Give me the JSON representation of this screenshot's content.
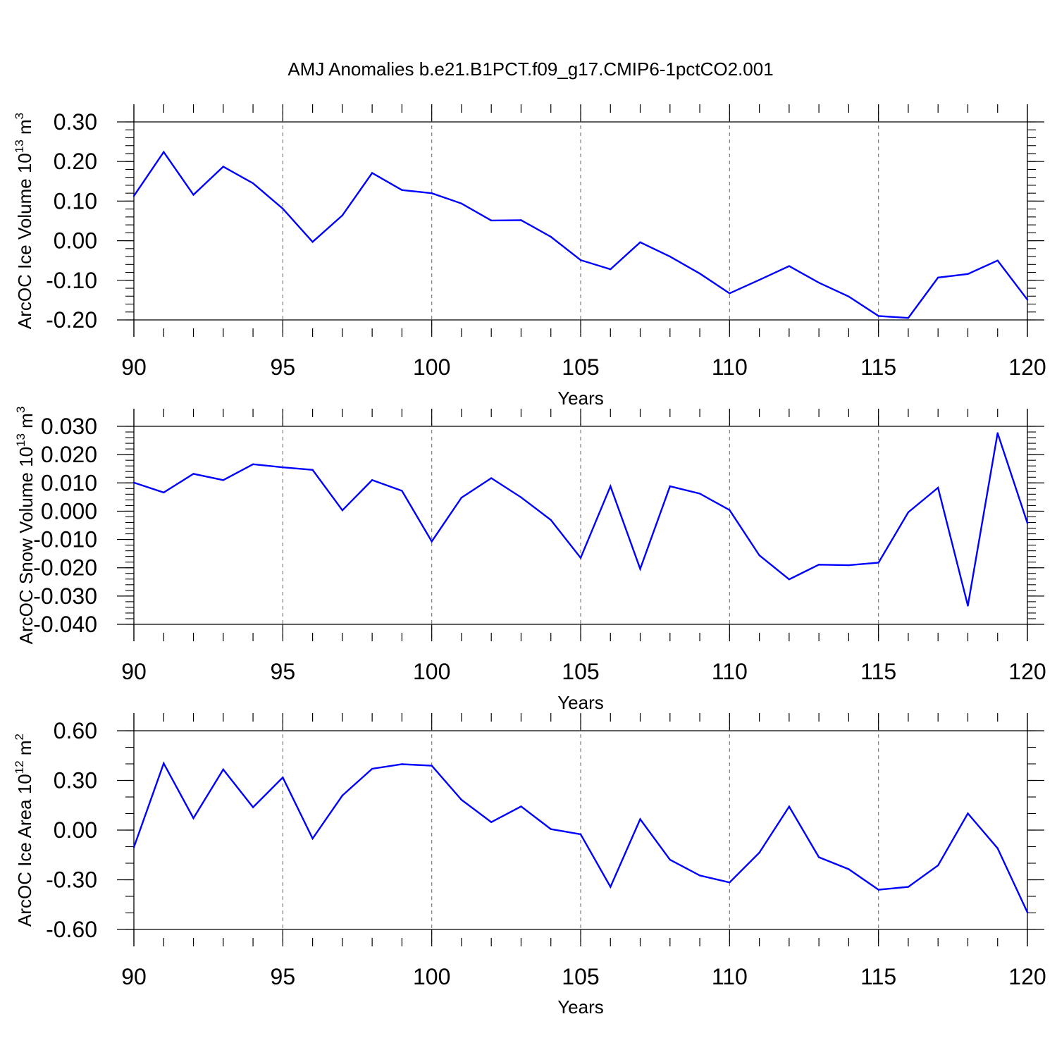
{
  "title": "AMJ Anomalies b.e21.B1PCT.f09_g17.CMIP6-1pctCO2.001",
  "colors": {
    "line": "#0000ff",
    "axes": "#000000",
    "grid": "#808080"
  },
  "chart_data": [
    {
      "type": "line",
      "xlabel": "Years",
      "ylabel": {
        "prefix": "ArcOC Ice Volume 10",
        "exp": "13",
        "unit": " m",
        "unit_exp": "3"
      },
      "xlim": [
        90,
        120
      ],
      "ylim": [
        -0.2,
        0.3
      ],
      "x_ticks": [
        90,
        95,
        100,
        105,
        110,
        115,
        120
      ],
      "x_tick_labels": [
        "90",
        "95",
        "100",
        "105",
        "110",
        "115",
        "120"
      ],
      "y_ticks": [
        0.3,
        0.2,
        0.1,
        0.0,
        -0.1,
        -0.2
      ],
      "y_tick_labels": [
        "0.30",
        "0.20",
        "0.10",
        "0.00",
        "-0.10",
        "-0.20"
      ],
      "y_minor_step": 0.02,
      "grid": "vertical dashed at major x ticks",
      "x": [
        90,
        91,
        92,
        93,
        94,
        95,
        96,
        97,
        98,
        99,
        100,
        101,
        102,
        103,
        104,
        105,
        106,
        107,
        108,
        109,
        110,
        111,
        112,
        113,
        114,
        115,
        116,
        117,
        118,
        119,
        120
      ],
      "values": [
        0.113,
        0.224,
        0.116,
        0.187,
        0.145,
        0.081,
        -0.003,
        0.064,
        0.171,
        0.128,
        0.12,
        0.094,
        0.051,
        0.052,
        0.01,
        -0.049,
        -0.072,
        -0.004,
        -0.04,
        -0.083,
        -0.133,
        -0.099,
        -0.064,
        -0.106,
        -0.141,
        -0.19,
        -0.195,
        -0.093,
        -0.084,
        -0.05,
        -0.149
      ]
    },
    {
      "type": "line",
      "xlabel": "Years",
      "ylabel": {
        "prefix": "ArcOC Snow Volume 10",
        "exp": "13",
        "unit": " m",
        "unit_exp": "3"
      },
      "xlim": [
        90,
        120
      ],
      "ylim": [
        -0.04,
        0.03
      ],
      "x_ticks": [
        90,
        95,
        100,
        105,
        110,
        115,
        120
      ],
      "x_tick_labels": [
        "90",
        "95",
        "100",
        "105",
        "110",
        "115",
        "120"
      ],
      "y_ticks": [
        0.03,
        0.02,
        0.01,
        0.0,
        -0.01,
        -0.02,
        -0.03,
        -0.04
      ],
      "y_tick_labels": [
        "0.030",
        "0.020",
        "0.010",
        "0.000",
        "-0.010",
        "-0.020",
        "-0.030",
        "-0.040"
      ],
      "y_minor_step": 0.002,
      "grid": "vertical dashed at major x ticks",
      "x": [
        90,
        91,
        92,
        93,
        94,
        95,
        96,
        97,
        98,
        99,
        100,
        101,
        102,
        103,
        104,
        105,
        106,
        107,
        108,
        109,
        110,
        111,
        112,
        113,
        114,
        115,
        116,
        117,
        118,
        119,
        120
      ],
      "values": [
        0.0101,
        0.0066,
        0.0132,
        0.011,
        0.0166,
        0.0155,
        0.0146,
        0.0003,
        0.011,
        0.0072,
        -0.0107,
        0.0048,
        0.0117,
        0.0049,
        -0.0031,
        -0.0165,
        0.0088,
        -0.0204,
        0.0088,
        0.0062,
        0.0004,
        -0.0156,
        -0.0241,
        -0.0189,
        -0.0191,
        -0.0182,
        -0.0004,
        0.0083,
        -0.0334,
        0.0276,
        -0.0042
      ]
    },
    {
      "type": "line",
      "xlabel": "Years",
      "ylabel": {
        "prefix": "ArcOC Ice Area 10",
        "exp": "12",
        "unit": " m",
        "unit_exp": "2"
      },
      "xlim": [
        90,
        120
      ],
      "ylim": [
        -0.7,
        0.6
      ],
      "x_ticks": [
        90,
        95,
        100,
        105,
        110,
        115,
        120
      ],
      "x_tick_labels": [
        "90",
        "95",
        "100",
        "105",
        "110",
        "115",
        "120"
      ],
      "y_ticks": [
        0.6,
        0.3,
        0.0,
        -0.3,
        -0.6
      ],
      "y_tick_labels": [
        "0.60",
        "0.30",
        "0.00",
        "-0.30",
        "-0.60"
      ],
      "y_minor_step": 0.1,
      "grid": "vertical dashed at major x ticks",
      "x": [
        90,
        91,
        92,
        93,
        94,
        95,
        96,
        97,
        98,
        99,
        100,
        101,
        102,
        103,
        104,
        105,
        106,
        107,
        108,
        109,
        110,
        111,
        112,
        113,
        114,
        115,
        116,
        117,
        118,
        119,
        120
      ],
      "values": [
        -0.104,
        0.403,
        0.072,
        0.366,
        0.138,
        0.318,
        -0.051,
        0.209,
        0.37,
        0.398,
        0.389,
        0.183,
        0.048,
        0.143,
        0.006,
        -0.025,
        -0.343,
        0.066,
        -0.179,
        -0.274,
        -0.316,
        -0.136,
        0.142,
        -0.164,
        -0.236,
        -0.36,
        -0.343,
        -0.213,
        0.101,
        -0.11,
        -0.497
      ]
    }
  ]
}
